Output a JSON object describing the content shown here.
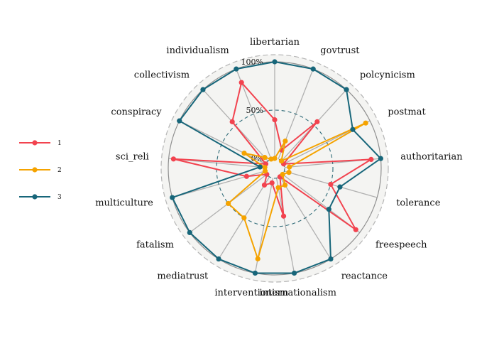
{
  "chart_data": {
    "type": "radar",
    "axes": [
      "libertarian",
      "govtrust",
      "polcynicism",
      "postmat",
      "authoritarian",
      "tolerance",
      "freespeech",
      "reactance",
      "internationalism",
      "interventionism",
      "mediatrust",
      "fatalism",
      "multiculture",
      "sci_reli",
      "conspiracy",
      "collectivism",
      "individualism"
    ],
    "radial_ticks": [
      {
        "value": 0,
        "label": "0%"
      },
      {
        "value": 50,
        "label": "50%"
      },
      {
        "value": 100,
        "label": "100%"
      }
    ],
    "rlim": [
      0,
      100
    ],
    "series": [
      {
        "name": "1",
        "color": "#F2434F",
        "values": [
          40,
          10,
          55,
          0,
          90,
          50,
          95,
          0,
          40,
          5,
          10,
          0,
          20,
          95,
          0,
          55,
          85
        ]
      },
      {
        "name": "2",
        "color": "#F5A300",
        "values": [
          0,
          20,
          0,
          95,
          5,
          5,
          0,
          10,
          10,
          85,
          50,
          50,
          0,
          0,
          25,
          5,
          0
        ]
      },
      {
        "name": "3",
        "color": "#17667A",
        "values": [
          100,
          100,
          100,
          80,
          100,
          60,
          60,
          100,
          100,
          100,
          100,
          100,
          100,
          5,
          100,
          100,
          100
        ]
      }
    ],
    "legend_position": "left"
  }
}
